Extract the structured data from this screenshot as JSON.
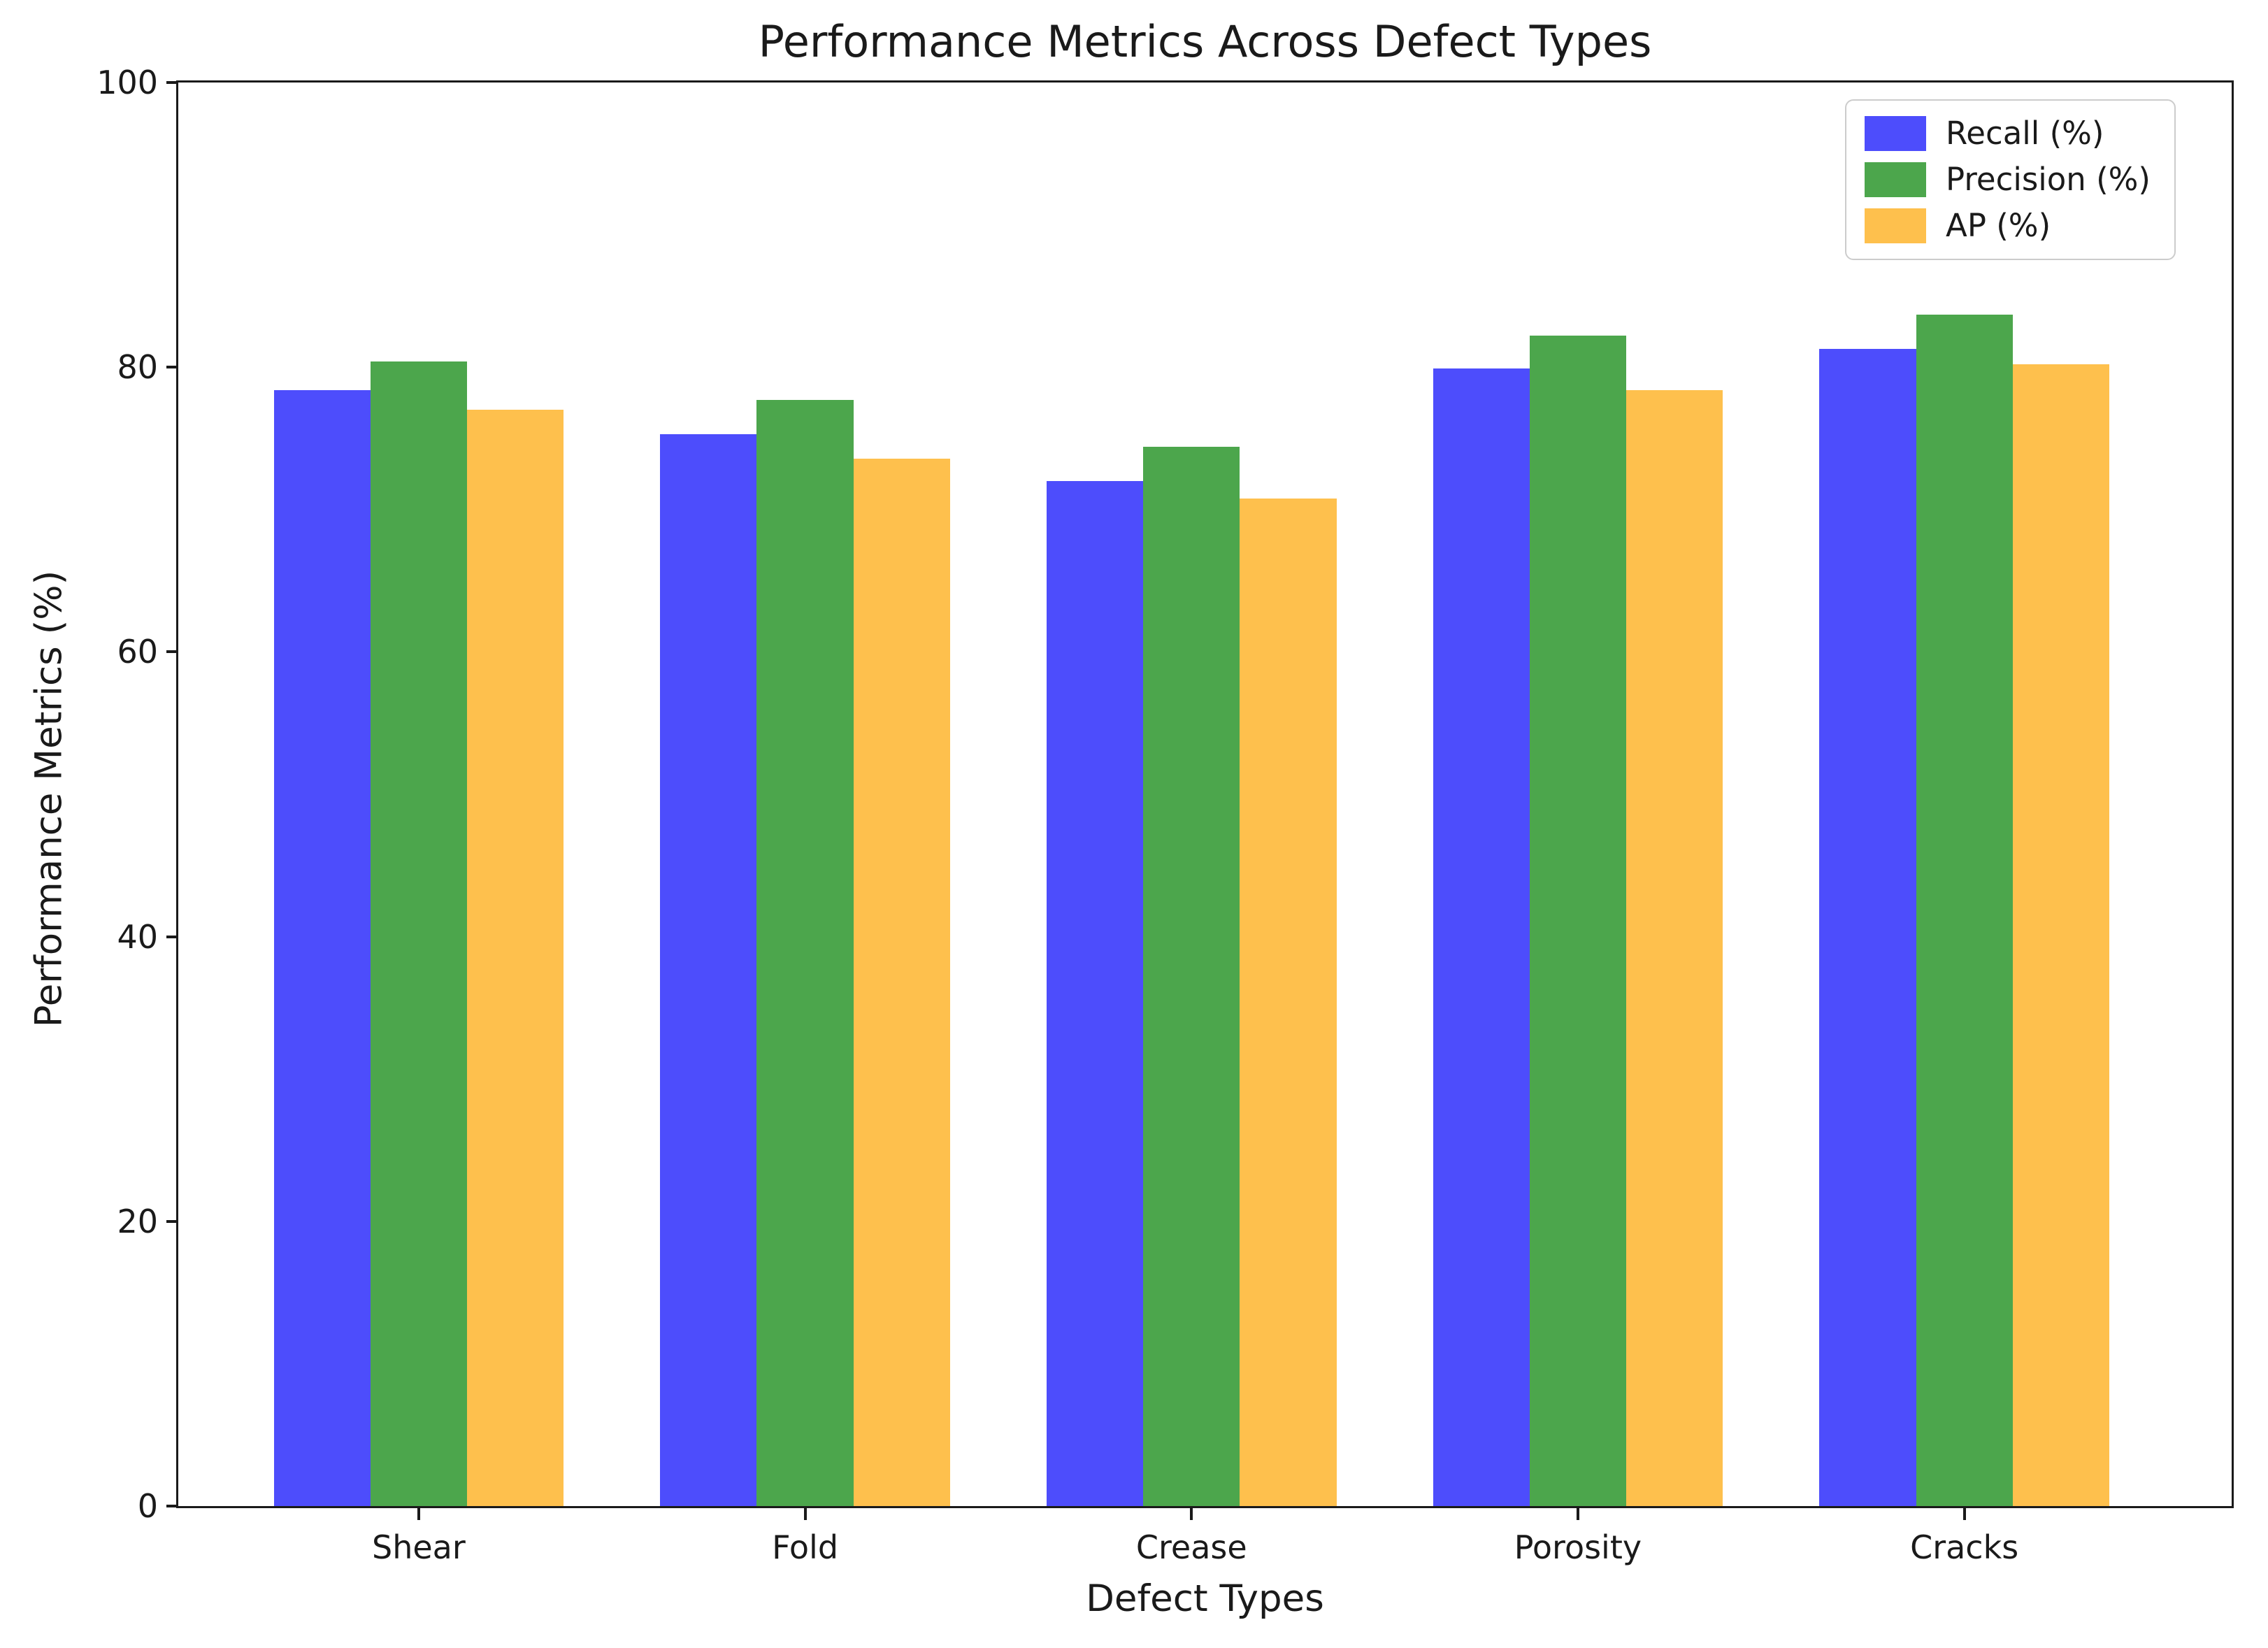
{
  "chart_data": {
    "type": "bar",
    "title": "Performance Metrics Across Defect Types",
    "xlabel": "Defect Types",
    "ylabel": "Performance Metrics (%)",
    "categories": [
      "Shear",
      "Fold",
      "Crease",
      "Porosity",
      "Cracks"
    ],
    "series": [
      {
        "name": "Recall (%)",
        "color": "#4d4dfc",
        "values": [
          78.4,
          75.3,
          72.0,
          79.9,
          81.3
        ]
      },
      {
        "name": "Precision (%)",
        "color": "#4ca64c",
        "values": [
          80.4,
          77.7,
          74.4,
          82.2,
          83.7
        ]
      },
      {
        "name": "AP (%)",
        "color": "#fec04d",
        "values": [
          77.0,
          73.6,
          70.8,
          78.4,
          80.2
        ]
      }
    ],
    "ylim": [
      0,
      100
    ],
    "yticks": [
      0,
      20,
      40,
      60,
      80,
      100
    ],
    "grid": false,
    "legend_position": "upper right",
    "axis_color": "#1a1a1a",
    "background_color": "#ffffff"
  }
}
